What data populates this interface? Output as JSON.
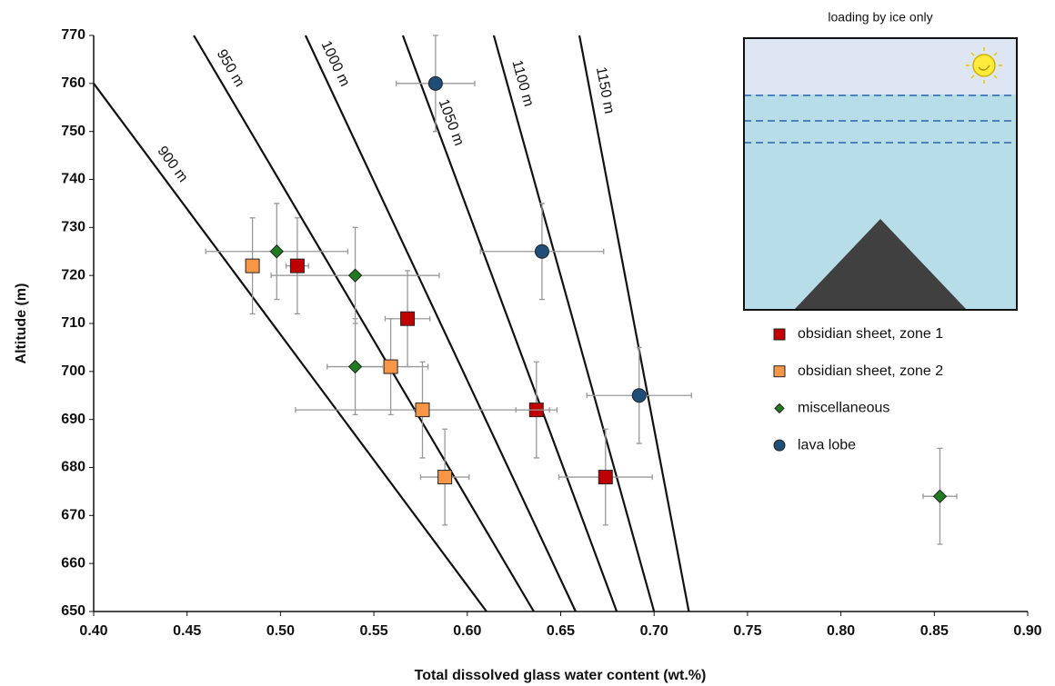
{
  "chart_data": {
    "type": "scatter",
    "x_label": "Total dissolved glass water content (wt.%)",
    "y_label": "Altitude (m)",
    "xlim": [
      0.4,
      0.9
    ],
    "ylim": [
      650,
      770
    ],
    "xticks": [
      {
        "value": 0.4,
        "label": "0.40"
      },
      0.45,
      {
        "value": 0.5,
        "label": "0.50"
      },
      0.55,
      {
        "value": 0.6,
        "label": "0.60"
      },
      0.65,
      {
        "value": 0.7,
        "label": "0.70"
      },
      0.75,
      {
        "value": 0.8,
        "label": "0.80"
      },
      0.85,
      {
        "value": 0.9,
        "label": "0.90"
      }
    ],
    "yticks": [
      650,
      660,
      670,
      680,
      690,
      700,
      710,
      720,
      730,
      740,
      750,
      760,
      770
    ],
    "inset_title": "loading by ice only",
    "isopleths": [
      {
        "name": "900 m",
        "color": "#111111",
        "x": [
          0.4,
          0.6103
        ],
        "values": [
          760,
          650
        ]
      },
      {
        "name": "950 m",
        "color": "#111111",
        "x": [
          0.4536,
          0.6356
        ],
        "values": [
          770,
          650
        ]
      },
      {
        "name": "1000 m",
        "color": "#111111",
        "x": [
          0.5134,
          0.658
        ],
        "values": [
          770,
          650
        ]
      },
      {
        "name": "1050 m",
        "color": "#111111",
        "x": [
          0.5655,
          0.68
        ],
        "values": [
          770,
          650
        ]
      },
      {
        "name": "1100 m",
        "color": "#111111",
        "x": [
          0.6142,
          0.7
        ],
        "values": [
          770,
          650
        ]
      },
      {
        "name": "1150 m",
        "color": "#111111",
        "x": [
          0.66,
          0.7186
        ],
        "values": [
          770,
          650
        ]
      }
    ],
    "series": [
      {
        "name": "obsidian sheet, zone 1",
        "color": "#c00000",
        "marker": "square",
        "x": [
          0.509,
          0.568,
          0.637,
          0.674
        ],
        "values": [
          722,
          711,
          692,
          678
        ],
        "xerr": [
          0.006,
          0.012,
          0.011,
          0.025
        ],
        "yerr": [
          10,
          10,
          10,
          10
        ]
      },
      {
        "name": "obsidian sheet, zone 2",
        "color": "#f79646",
        "marker": "square",
        "x": [
          0.485,
          0.559,
          0.576,
          0.588
        ],
        "values": [
          722,
          701,
          692,
          678
        ],
        "xerr": [
          0.002,
          0.02,
          0.068,
          0.013
        ],
        "yerr": [
          10,
          10,
          10,
          10
        ]
      },
      {
        "name": "miscellaneous",
        "color": "#1e7b1e",
        "marker": "diamond",
        "x": [
          0.498,
          0.54,
          0.54,
          0.853
        ],
        "values": [
          725,
          720,
          701,
          674
        ],
        "xerr": [
          0.038,
          0.045,
          0.015,
          0.009
        ],
        "yerr": [
          10,
          10,
          10,
          10
        ]
      },
      {
        "name": "lava lobe",
        "color": "#1f4e79",
        "marker": "circle",
        "x": [
          0.583,
          0.64,
          0.692
        ],
        "values": [
          760,
          725,
          695
        ],
        "xerr": [
          0.021,
          0.033,
          0.028
        ],
        "yerr": [
          10,
          10,
          10
        ]
      }
    ]
  }
}
